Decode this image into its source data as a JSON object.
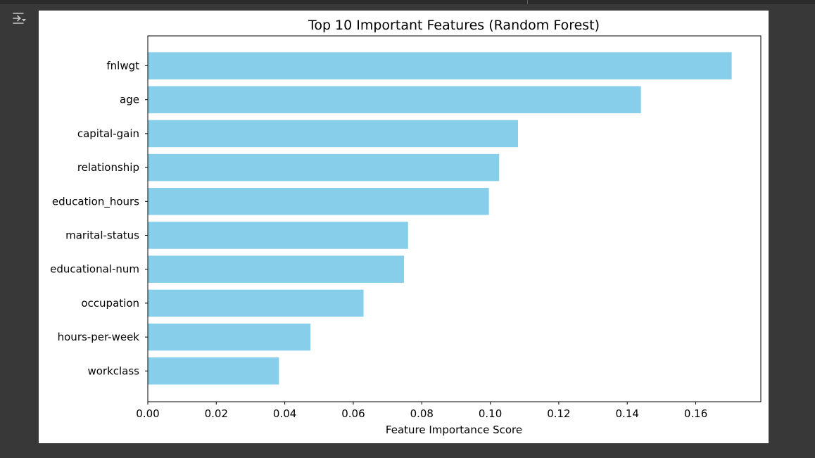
{
  "ui": {
    "output_toggle_icon": "output-collapse-icon",
    "background_color": "#383838"
  },
  "chart_data": {
    "type": "bar",
    "orientation": "horizontal",
    "title": "Top 10 Important Features (Random Forest)",
    "xlabel": "Feature Importance Score",
    "ylabel": "",
    "categories": [
      "fnlwgt",
      "age",
      "capital-gain",
      "relationship",
      "education_hours",
      "marital-status",
      "educational-num",
      "occupation",
      "hours-per-week",
      "workclass"
    ],
    "values": [
      0.1705,
      0.144,
      0.1081,
      0.1026,
      0.0996,
      0.076,
      0.0748,
      0.063,
      0.0475,
      0.0383
    ],
    "xlim": [
      0.0,
      0.179
    ],
    "xticks": [
      "0.00",
      "0.02",
      "0.04",
      "0.06",
      "0.08",
      "0.10",
      "0.12",
      "0.14",
      "0.16"
    ],
    "bar_color": "#87ceeb",
    "grid": false,
    "legend": "none"
  }
}
